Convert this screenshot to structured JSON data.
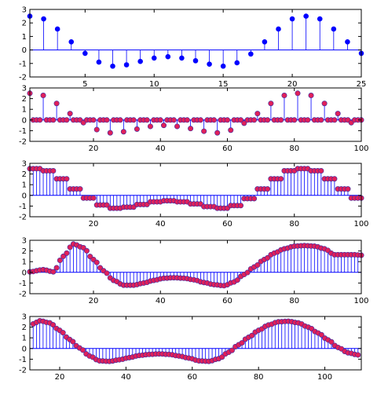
{
  "colors": {
    "stem_blue": "#0000ff",
    "marker_red": "#e0205a",
    "marker_edge": "#3a2aa0",
    "frame": "#000000"
  },
  "chart_data": [
    {
      "type": "stem",
      "marker": "blue-dot",
      "x_start": 1,
      "values": [
        2.5,
        2.3,
        1.55,
        0.6,
        -0.25,
        -0.9,
        -1.2,
        -1.1,
        -0.85,
        -0.6,
        -0.5,
        -0.6,
        -0.8,
        -1.05,
        -1.2,
        -0.95,
        -0.3,
        0.6,
        1.55,
        2.3,
        2.5,
        2.3,
        1.55,
        0.6,
        -0.25
      ],
      "xlim": [
        1,
        25
      ],
      "ylim": [
        -2,
        3
      ],
      "xticks": [
        5,
        10,
        15,
        20,
        25
      ],
      "yticks": [
        -2,
        -1,
        0,
        1,
        2,
        3
      ]
    },
    {
      "type": "stem",
      "marker": "red-dot",
      "upsample_factor": 4,
      "values": [
        2.5,
        2.3,
        1.55,
        0.6,
        -0.25,
        -0.9,
        -1.2,
        -1.1,
        -0.85,
        -0.6,
        -0.5,
        -0.6,
        -0.8,
        -1.05,
        -1.2,
        -0.95,
        -0.3,
        0.6,
        1.55,
        2.3,
        2.5,
        2.3,
        1.55,
        0.6,
        -0.25
      ],
      "xlim": [
        1,
        100
      ],
      "ylim": [
        -2,
        3
      ],
      "xticks": [
        20,
        40,
        60,
        80,
        100
      ],
      "yticks": [
        -2,
        -1,
        0,
        1,
        2,
        3
      ]
    },
    {
      "type": "stem",
      "marker": "red-dot",
      "hold_factor": 4,
      "values": [
        2.5,
        2.3,
        1.55,
        0.6,
        -0.25,
        -0.9,
        -1.2,
        -1.1,
        -0.85,
        -0.6,
        -0.5,
        -0.6,
        -0.8,
        -1.05,
        -1.2,
        -0.95,
        -0.3,
        0.6,
        1.55,
        2.3,
        2.5,
        2.3,
        1.55,
        0.6,
        -0.25
      ],
      "xlim": [
        1,
        100
      ],
      "ylim": [
        -2,
        3
      ],
      "xticks": [
        20,
        40,
        60,
        80,
        100
      ],
      "yticks": [
        -2,
        -1,
        0,
        1,
        2,
        3
      ]
    },
    {
      "type": "stem",
      "marker": "red-dot",
      "x": [
        1,
        5,
        8,
        11,
        14,
        17,
        20,
        23,
        26,
        29,
        32,
        35,
        38,
        41,
        44,
        47,
        50,
        53,
        56,
        59,
        62,
        65,
        68,
        71,
        74,
        77,
        80,
        83,
        86,
        89,
        92,
        95,
        98,
        100
      ],
      "y": [
        0.05,
        0.25,
        0.05,
        1.5,
        2.65,
        2.3,
        1.2,
        0.15,
        -0.75,
        -1.2,
        -1.2,
        -1.0,
        -0.75,
        -0.55,
        -0.5,
        -0.55,
        -0.7,
        -0.95,
        -1.15,
        -1.25,
        -0.9,
        -0.2,
        0.5,
        1.2,
        1.8,
        2.2,
        2.45,
        2.5,
        2.45,
        2.2,
        1.65,
        1.65,
        1.65,
        1.6
      ],
      "xlim": [
        1,
        100
      ],
      "ylim": [
        -2,
        3
      ],
      "xticks": [
        20,
        40,
        60,
        80,
        100
      ],
      "yticks": [
        -2,
        -1,
        0,
        1,
        2,
        3
      ]
    },
    {
      "type": "stem",
      "marker": "red-dot",
      "x": [
        12,
        14,
        17,
        20,
        23,
        26,
        29,
        32,
        35,
        38,
        41,
        44,
        47,
        50,
        53,
        56,
        59,
        62,
        65,
        68,
        71,
        74,
        77,
        80,
        83,
        86,
        89,
        92,
        95,
        98,
        101,
        104,
        107,
        110
      ],
      "y": [
        2.3,
        2.6,
        2.4,
        1.7,
        0.85,
        0.05,
        -0.7,
        -1.15,
        -1.2,
        -1.05,
        -0.85,
        -0.65,
        -0.55,
        -0.5,
        -0.55,
        -0.7,
        -0.9,
        -1.15,
        -1.2,
        -0.95,
        -0.35,
        0.35,
        1.05,
        1.7,
        2.2,
        2.5,
        2.55,
        2.4,
        2.0,
        1.45,
        0.8,
        0.1,
        -0.4,
        -0.6
      ],
      "xlim": [
        11,
        111
      ],
      "ylim": [
        -2,
        3
      ],
      "xticks": [
        20,
        40,
        60,
        80,
        100
      ],
      "yticks": [
        -2,
        -1,
        0,
        1,
        2,
        3
      ]
    }
  ]
}
